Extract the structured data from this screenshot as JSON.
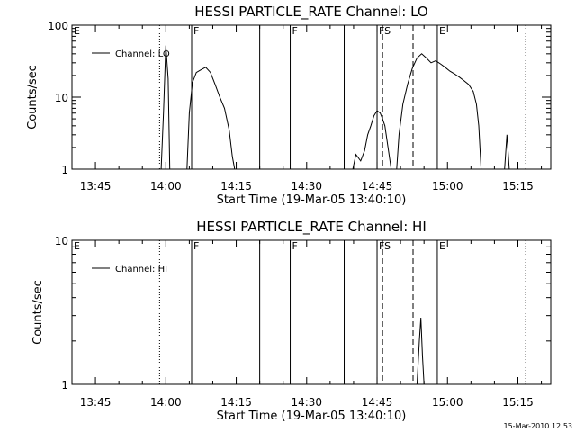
{
  "chart_data": [
    {
      "type": "line",
      "title": "HESSI PARTICLE_RATE Channel: LO",
      "xlabel": "Start Time (19-Mar-05 13:40:10)",
      "ylabel": "Counts/sec",
      "y_scale": "log",
      "xlim": [
        "13:40",
        "15:22"
      ],
      "ylim": [
        1,
        100
      ],
      "x_ticks": [
        "13:45",
        "14:00",
        "14:15",
        "14:30",
        "14:45",
        "15:00",
        "15:15"
      ],
      "y_ticks": [
        "1",
        "10",
        "100"
      ],
      "legend": {
        "position": "top-left",
        "entries": [
          "Channel: LO"
        ]
      },
      "series": [
        {
          "name": "Channel: LO",
          "segments": [
            [
              [
                "13:59:00",
                1.0
              ],
              [
                "13:59:30",
                6
              ],
              [
                "14:00:00",
                52
              ],
              [
                "14:00:30",
                18
              ],
              [
                "14:00:50",
                1.0
              ]
            ],
            [
              [
                "14:04:30",
                1.0
              ],
              [
                "14:05:00",
                6
              ],
              [
                "14:05:40",
                16
              ],
              [
                "14:06:30",
                22
              ],
              [
                "14:07:30",
                24
              ],
              [
                "14:08:30",
                26
              ],
              [
                "14:09:30",
                22
              ],
              [
                "14:10:30",
                15
              ],
              [
                "14:11:30",
                10
              ],
              [
                "14:12:30",
                7
              ],
              [
                "14:13:30",
                3.5
              ],
              [
                "14:14:10",
                1.5
              ],
              [
                "14:14:40",
                1.0
              ]
            ],
            [
              [
                "14:39:50",
                1.0
              ],
              [
                "14:40:30",
                1.6
              ],
              [
                "14:41:30",
                1.3
              ],
              [
                "14:42:20",
                1.8
              ],
              [
                "14:43:00",
                3
              ],
              [
                "14:43:40",
                4
              ],
              [
                "14:44:20",
                5.5
              ],
              [
                "14:45:00",
                6.5
              ],
              [
                "14:45:40",
                6
              ],
              [
                "14:46:10",
                5
              ],
              [
                "14:46:40",
                4
              ],
              [
                "14:47:20",
                2
              ],
              [
                "14:48:00",
                1.0
              ]
            ],
            [
              [
                "14:49:10",
                1.0
              ],
              [
                "14:49:40",
                3
              ],
              [
                "14:50:30",
                8
              ],
              [
                "14:51:30",
                15
              ],
              [
                "14:52:30",
                25
              ],
              [
                "14:53:30",
                35
              ],
              [
                "14:54:30",
                40
              ],
              [
                "14:55:30",
                35
              ],
              [
                "14:56:30",
                30
              ],
              [
                "14:57:30",
                32
              ],
              [
                "14:58:30",
                29
              ],
              [
                "14:59:30",
                26
              ],
              [
                "15:00:30",
                23
              ],
              [
                "15:01:30",
                21
              ],
              [
                "15:02:30",
                19
              ],
              [
                "15:03:30",
                17
              ],
              [
                "15:04:30",
                15
              ],
              [
                "15:05:30",
                12
              ],
              [
                "15:06:10",
                8
              ],
              [
                "15:06:40",
                4
              ],
              [
                "15:07:10",
                1.0
              ]
            ],
            [
              [
                "15:12:10",
                1.0
              ],
              [
                "15:12:40",
                3
              ],
              [
                "15:13:10",
                1.0
              ]
            ]
          ]
        }
      ],
      "event_lines": [
        {
          "time": "13:58:40",
          "style": "dotted",
          "label": ""
        },
        {
          "time": "14:05:30",
          "style": "solid",
          "label": "F"
        },
        {
          "time": "14:20:00",
          "style": "solid",
          "label": ""
        },
        {
          "time": "14:26:30",
          "style": "solid",
          "label": "F"
        },
        {
          "time": "14:38:00",
          "style": "solid",
          "label": ""
        },
        {
          "time": "14:45:00",
          "style": "solid",
          "label": "FS"
        },
        {
          "time": "14:46:10",
          "style": "dashed",
          "label": ""
        },
        {
          "time": "14:52:40",
          "style": "dashed",
          "label": ""
        },
        {
          "time": "14:57:50",
          "style": "solid",
          "label": "E"
        },
        {
          "time": "15:16:40",
          "style": "dotted",
          "label": ""
        }
      ],
      "corner_label": "E"
    },
    {
      "type": "line",
      "title": "HESSI PARTICLE_RATE Channel: HI",
      "xlabel": "Start Time (19-Mar-05 13:40:10)",
      "ylabel": "Counts/sec",
      "y_scale": "log",
      "xlim": [
        "13:40",
        "15:22"
      ],
      "ylim": [
        1,
        10
      ],
      "x_ticks": [
        "13:45",
        "14:00",
        "14:15",
        "14:30",
        "14:45",
        "15:00",
        "15:15"
      ],
      "y_ticks": [
        "1",
        "10"
      ],
      "legend": {
        "position": "top-left",
        "entries": [
          "Channel: HI"
        ]
      },
      "series": [
        {
          "name": "Channel: HI",
          "segments": [
            [
              [
                "14:53:30",
                1.0
              ],
              [
                "14:54:00",
                2
              ],
              [
                "14:54:20",
                2.9
              ],
              [
                "14:54:40",
                1.6
              ],
              [
                "14:55:00",
                1.0
              ]
            ]
          ]
        }
      ],
      "event_lines": [
        {
          "time": "13:58:40",
          "style": "dotted",
          "label": ""
        },
        {
          "time": "14:05:30",
          "style": "solid",
          "label": "F"
        },
        {
          "time": "14:20:00",
          "style": "solid",
          "label": ""
        },
        {
          "time": "14:26:30",
          "style": "solid",
          "label": "F"
        },
        {
          "time": "14:38:00",
          "style": "solid",
          "label": ""
        },
        {
          "time": "14:45:00",
          "style": "solid",
          "label": "FS"
        },
        {
          "time": "14:46:10",
          "style": "dashed",
          "label": ""
        },
        {
          "time": "14:52:40",
          "style": "dashed",
          "label": ""
        },
        {
          "time": "14:57:50",
          "style": "solid",
          "label": "E"
        },
        {
          "time": "15:16:40",
          "style": "dotted",
          "label": ""
        }
      ],
      "corner_label": "E"
    }
  ],
  "footer": {
    "timestamp": "15-Mar-2010 12:53"
  }
}
